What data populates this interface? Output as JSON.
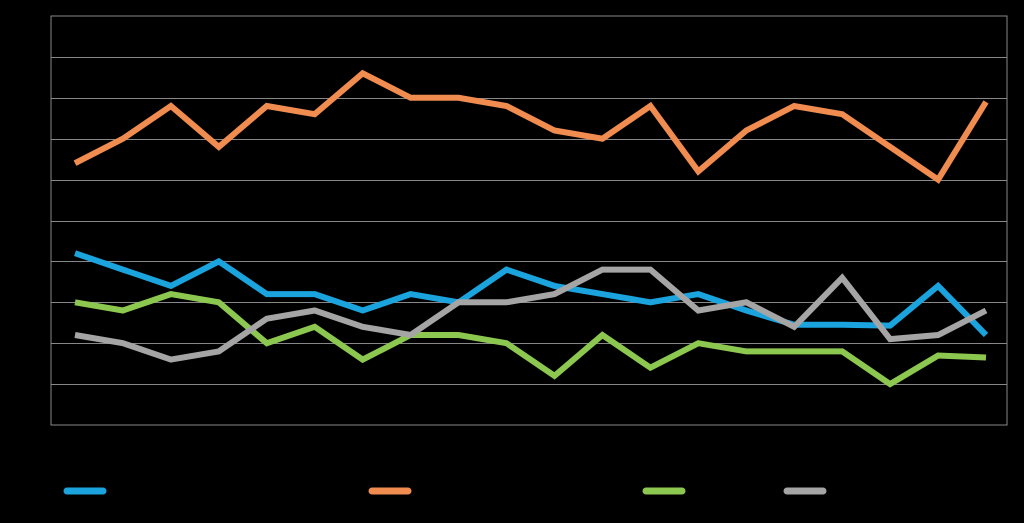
{
  "chart_data": {
    "type": "line",
    "title": "",
    "xlabel": "",
    "ylabel": "",
    "grid": true,
    "legend_placement": "bottom",
    "ylim": [
      0,
      100
    ],
    "x": [
      1,
      2,
      3,
      4,
      5,
      6,
      7,
      8,
      9,
      10,
      11,
      12,
      13,
      14,
      15,
      16,
      17,
      18,
      19,
      20
    ],
    "series": [
      {
        "color": "#1aa3dd",
        "values": [
          42,
          38,
          34,
          40,
          32,
          32,
          28,
          32,
          30,
          38,
          34,
          32,
          30,
          32,
          28,
          24.5,
          24.5,
          24.3,
          34,
          22
        ]
      },
      {
        "color": "#f08c50",
        "values": [
          64,
          70,
          78,
          68,
          78,
          76,
          86,
          80,
          80,
          78,
          72,
          70,
          78,
          62,
          72,
          78,
          76,
          68,
          60,
          79
        ]
      },
      {
        "color": "#8cc850",
        "values": [
          30,
          28,
          32,
          30,
          20,
          24,
          16,
          22,
          22,
          20,
          12,
          22,
          14,
          20,
          18,
          18,
          18,
          10,
          17,
          16.5
        ]
      },
      {
        "color": "#a5a5a5",
        "values": [
          22,
          20,
          16,
          18,
          26,
          28,
          24,
          22,
          30,
          30,
          32,
          38,
          38,
          28,
          30,
          24,
          36,
          21,
          22,
          28
        ]
      }
    ]
  }
}
